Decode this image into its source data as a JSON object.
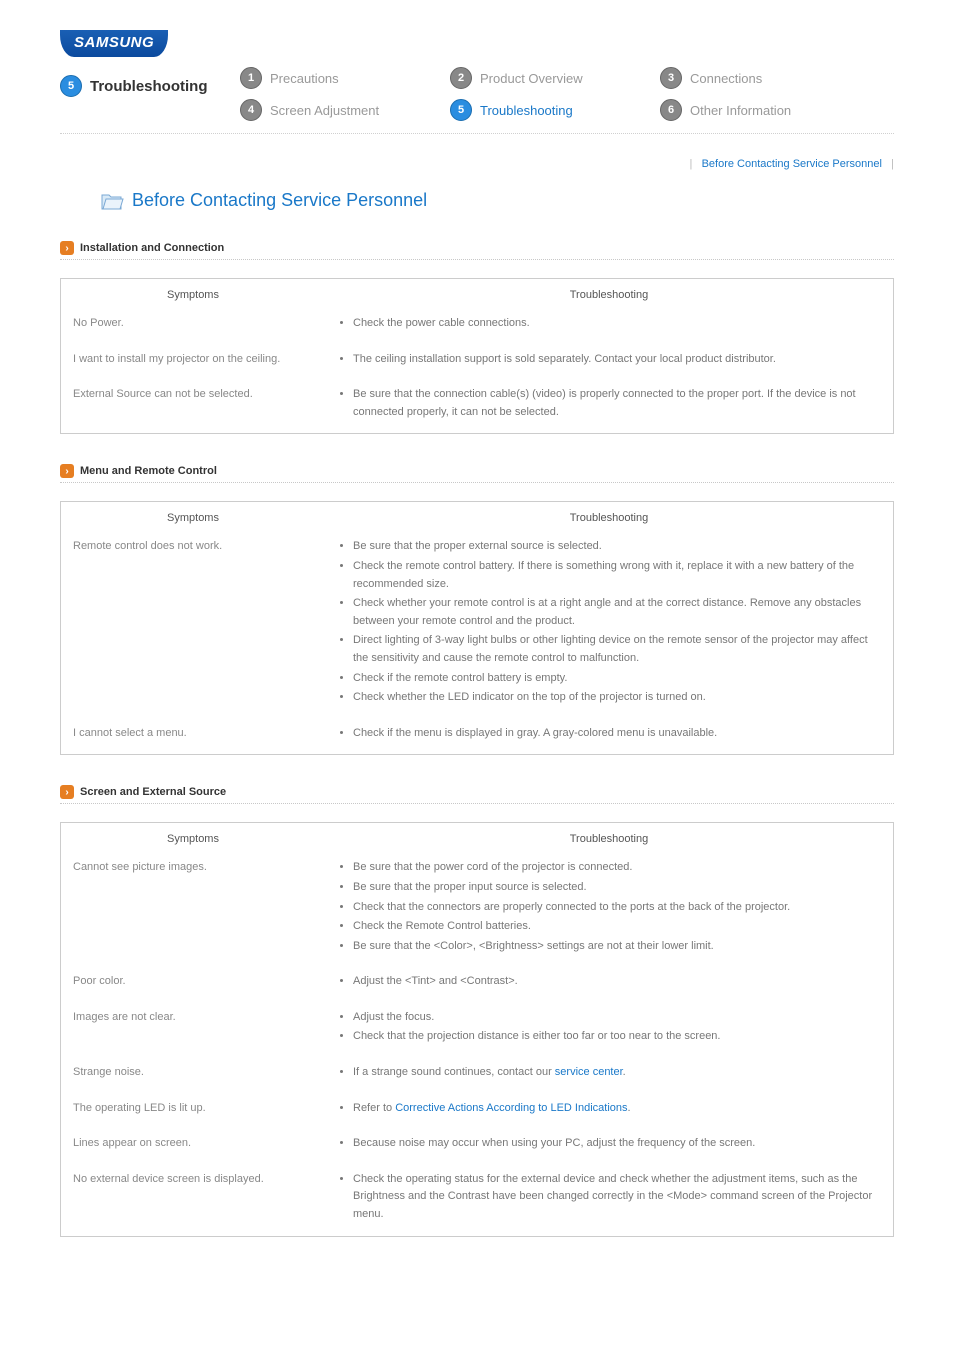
{
  "brand": "SAMSUNG",
  "nav": {
    "section_label": "Troubleshooting",
    "section_num": "5",
    "items": [
      {
        "num": "1",
        "label": "Precautions",
        "active": false
      },
      {
        "num": "2",
        "label": "Product Overview",
        "active": false
      },
      {
        "num": "3",
        "label": "Connections",
        "active": false
      },
      {
        "num": "4",
        "label": "Screen Adjustment",
        "active": false
      },
      {
        "num": "5",
        "label": "Troubleshooting",
        "active": true
      },
      {
        "num": "6",
        "label": "Other Information",
        "active": false
      }
    ]
  },
  "breadcrumb": {
    "sep": "|",
    "link": "Before Contacting Service Personnel"
  },
  "main_heading": "Before Contacting Service Personnel",
  "sections": [
    {
      "title": "Installation and Connection",
      "col_symptom": "Symptoms",
      "col_trouble": "Troubleshooting",
      "rows": [
        {
          "symptom": "No Power.",
          "items": [
            "Check the power cable connections."
          ]
        },
        {
          "symptom": "I want to install my projector on the ceiling.",
          "items": [
            "The ceiling installation support is sold separately. Contact your local product distributor."
          ]
        },
        {
          "symptom": "External Source can not be selected.",
          "items": [
            "Be sure that the connection cable(s) (video) is properly connected to the proper port. If the device is not connected properly, it can not be selected."
          ]
        }
      ]
    },
    {
      "title": "Menu and Remote Control",
      "col_symptom": "Symptoms",
      "col_trouble": "Troubleshooting",
      "rows": [
        {
          "symptom": "Remote control does not work.",
          "items": [
            "Be sure that the proper external source is selected.",
            "Check the remote control battery. If there is something wrong with it, replace it with a new battery of the recommended size.",
            "Check whether your remote control is at a right angle and at the correct distance. Remove any obstacles between your remote control and the product.",
            "Direct lighting of 3-way light bulbs or other lighting device on the remote sensor of the projector may affect the sensitivity and cause the remote control to malfunction.",
            "Check if the remote control battery is empty.",
            "Check whether the LED indicator on the top of the projector is turned on."
          ]
        },
        {
          "symptom": "I cannot select a menu.",
          "items": [
            "Check if the menu is displayed in gray. A gray-colored menu is unavailable."
          ]
        }
      ]
    },
    {
      "title": "Screen and External Source",
      "col_symptom": "Symptoms",
      "col_trouble": "Troubleshooting",
      "rows": [
        {
          "symptom": "Cannot see picture images.",
          "items": [
            "Be sure that the power cord of the projector is connected.",
            "Be sure that the proper input source is selected.",
            "Check that the connectors are properly connected to the ports at the back of the projector.",
            "Check the Remote Control batteries.",
            "Be sure that the <Color>, <Brightness> settings are not at their lower limit."
          ]
        },
        {
          "symptom": "Poor color.",
          "items": [
            "Adjust the <Tint> and <Contrast>."
          ]
        },
        {
          "symptom": "Images are not clear.",
          "items": [
            "Adjust the focus.",
            "Check that the projection distance is either too far or too near to the screen."
          ]
        },
        {
          "symptom": "Strange noise.",
          "items_html": [
            "If a strange sound continues, contact our <span class='link-blue'>service center</span>."
          ]
        },
        {
          "symptom": "The operating LED is lit up.",
          "items_html": [
            "Refer to <span class='link-blue'>Corrective Actions According to LED Indications</span>."
          ]
        },
        {
          "symptom": "Lines appear on screen.",
          "items": [
            "Because noise may occur when using your PC, adjust the frequency of the screen."
          ]
        },
        {
          "symptom": "No external device screen is displayed.",
          "items": [
            "Check the operating status for the external device and check whether the adjustment items, such as the Brightness and the Contrast have been changed correctly in the <Mode> command screen of the Projector menu."
          ]
        }
      ]
    }
  ]
}
